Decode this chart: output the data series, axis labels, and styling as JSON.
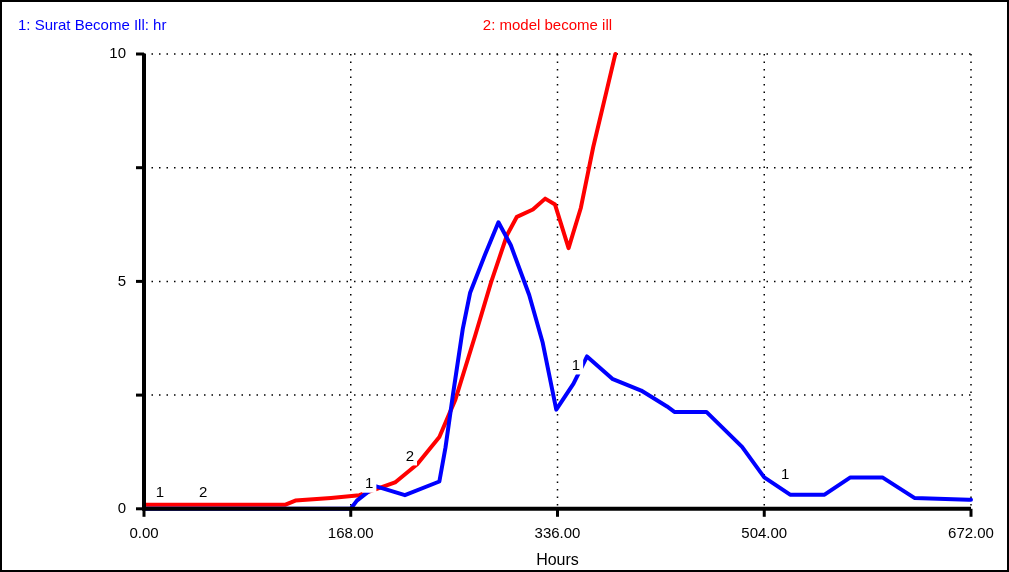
{
  "chart_data": {
    "type": "line",
    "xlabel": "Hours",
    "legend": "top",
    "grid": true,
    "line_style": "solid",
    "marker": "none",
    "xlim": [
      0,
      672
    ],
    "xticks": [
      {
        "value": 0,
        "label": "0.00"
      },
      {
        "value": 168,
        "label": "168.00"
      },
      {
        "value": 336,
        "label": "336.00"
      },
      {
        "value": 504,
        "label": "504.00"
      },
      {
        "value": 672,
        "label": "672.00"
      }
    ],
    "ylim": [
      0,
      10
    ],
    "yticks": [
      0,
      {
        "value": 2.5,
        "label": null
      },
      5,
      {
        "value": 7.5,
        "label": null
      },
      10
    ],
    "series": [
      {
        "name": "1: Surat Become Ill: hr",
        "color": "#0000ff",
        "x": [
          0,
          168,
          173,
          188,
          212,
          240,
          245,
          251,
          259,
          265,
          277,
          288,
          298,
          313,
          324,
          335,
          349,
          360,
          381,
          404,
          425,
          431,
          457,
          486,
          504,
          525,
          553,
          574,
          600,
          626,
          670,
          672
        ],
        "values": [
          0,
          0,
          0.18,
          0.5,
          0.3,
          0.6,
          1.35,
          2.5,
          3.95,
          4.75,
          5.58,
          6.3,
          5.8,
          4.7,
          3.65,
          2.18,
          2.75,
          3.35,
          2.85,
          2.6,
          2.25,
          2.13,
          2.13,
          1.36,
          0.69,
          0.31,
          0.31,
          0.69,
          0.69,
          0.24,
          0.2,
          0.2
        ]
      },
      {
        "name": "2: model become ill",
        "color": "#ff0000",
        "x": [
          0,
          115,
          123,
          152,
          175,
          204,
          222,
          240,
          253,
          269,
          282,
          295,
          303,
          316,
          326,
          334,
          345,
          355,
          365,
          376,
          383
        ],
        "values": [
          0.09,
          0.09,
          0.18,
          0.24,
          0.3,
          0.58,
          0.98,
          1.58,
          2.4,
          3.8,
          4.98,
          6.02,
          6.42,
          6.58,
          6.82,
          6.69,
          5.73,
          6.62,
          7.95,
          9.2,
          10
        ]
      }
    ],
    "annotations": [
      {
        "text": "1",
        "x": 13,
        "y": 0
      },
      {
        "text": "1",
        "x": 183,
        "y": 0.2
      },
      {
        "text": "1",
        "x": 351,
        "y": 2.8
      },
      {
        "text": "1",
        "x": 521,
        "y": 0.4
      },
      {
        "text": "2",
        "x": 48,
        "y": 0
      },
      {
        "text": "2",
        "x": 216,
        "y": 0.8
      }
    ]
  }
}
